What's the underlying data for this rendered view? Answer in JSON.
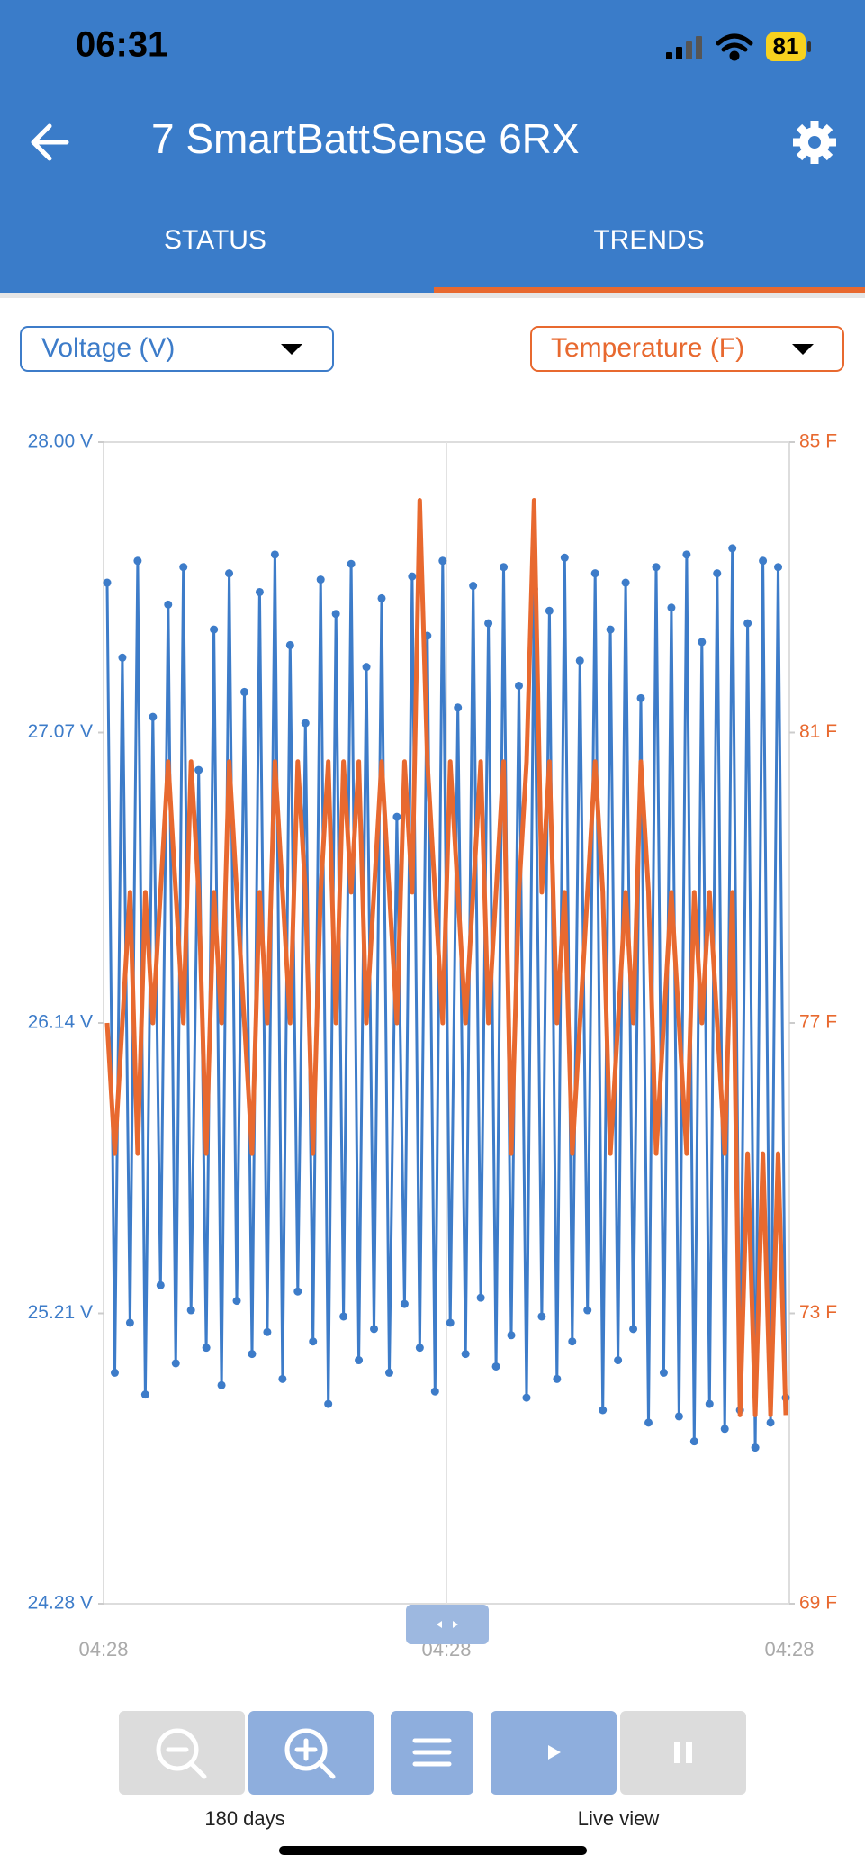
{
  "status_bar": {
    "time": "06:31",
    "battery": "81"
  },
  "header": {
    "title": "7 SmartBattSense 6RX"
  },
  "tabs": [
    "STATUS",
    "TRENDS"
  ],
  "selectors": {
    "left": "Voltage (V)",
    "right": "Temperature (F)"
  },
  "controls": {
    "zoom_label": "180 days",
    "live_label": "Live view"
  },
  "chart_data": {
    "type": "line",
    "xtick_labels": [
      "04:28",
      "04:28",
      "04:28"
    ],
    "ylim": [
      24.28,
      28.0
    ],
    "yticks": [
      {
        "value": 24.28,
        "label": "24.28 V"
      },
      {
        "value": 25.21,
        "label": "25.21 V"
      },
      {
        "value": 26.14,
        "label": "26.14 V"
      },
      {
        "value": 27.07,
        "label": "27.07 V"
      },
      {
        "value": 28.0,
        "label": "28.00 V"
      }
    ],
    "y2lim": [
      69,
      85
    ],
    "y2ticks": [
      {
        "value": 69,
        "label": "69 F"
      },
      {
        "value": 73,
        "label": "73 F"
      },
      {
        "value": 77,
        "label": "77 F"
      },
      {
        "value": 81,
        "label": "81 F"
      },
      {
        "value": 85,
        "label": "85 F"
      }
    ],
    "grid": false,
    "series": [
      {
        "name": "Voltage (V)",
        "color": "#3d7cc9",
        "values": [
          27.55,
          25.02,
          27.31,
          25.18,
          27.62,
          24.95,
          27.12,
          25.3,
          27.48,
          25.05,
          27.6,
          25.22,
          26.95,
          25.1,
          27.4,
          24.98,
          27.58,
          25.25,
          27.2,
          25.08,
          27.52,
          25.15,
          27.64,
          25.0,
          27.35,
          25.28,
          27.1,
          25.12,
          27.56,
          24.92,
          27.45,
          25.2,
          27.61,
          25.06,
          27.28,
          25.16,
          27.5,
          25.02,
          26.8,
          25.24,
          27.57,
          25.1,
          27.38,
          24.96,
          27.62,
          25.18,
          27.15,
          25.08,
          27.54,
          25.26,
          27.42,
          25.04,
          27.6,
          25.14,
          27.22,
          24.94,
          27.53,
          25.2,
          27.46,
          25.0,
          27.63,
          25.12,
          27.3,
          25.22,
          27.58,
          24.9,
          27.4,
          25.06,
          27.55,
          25.16,
          27.18,
          24.86,
          27.6,
          25.02,
          27.47,
          24.88,
          27.64,
          24.8,
          27.36,
          24.92,
          27.58,
          24.84,
          27.66,
          24.9,
          27.42,
          24.78,
          27.62,
          24.86,
          27.6,
          24.94
        ]
      },
      {
        "name": "Temperature (F)",
        "color": "#e8692f",
        "axis": "y2",
        "values": [
          77,
          75.2,
          77,
          78.8,
          75.2,
          78.8,
          77,
          78.8,
          80.6,
          78.8,
          77,
          80.6,
          78.8,
          75.2,
          78.8,
          77,
          80.6,
          78.8,
          77,
          75.2,
          78.8,
          77,
          80.6,
          78.8,
          77,
          80.6,
          78.8,
          75.2,
          78.8,
          80.6,
          77,
          80.6,
          78.8,
          80.6,
          77,
          78.8,
          80.6,
          78.8,
          77,
          80.6,
          78.8,
          84.2,
          80.6,
          78.8,
          77,
          80.6,
          78.8,
          77,
          78.8,
          80.6,
          77,
          78.8,
          80.6,
          75.2,
          78.8,
          80.6,
          84.2,
          78.8,
          80.6,
          77,
          78.8,
          75.2,
          77,
          78.8,
          80.6,
          78.8,
          75.2,
          77,
          78.8,
          77,
          80.6,
          78.8,
          75.2,
          77,
          78.8,
          77,
          75.2,
          78.8,
          77,
          78.8,
          77,
          75.2,
          78.8,
          71.6,
          75.2,
          71.6,
          75.2,
          71.6,
          75.2,
          71.6
        ]
      }
    ]
  }
}
